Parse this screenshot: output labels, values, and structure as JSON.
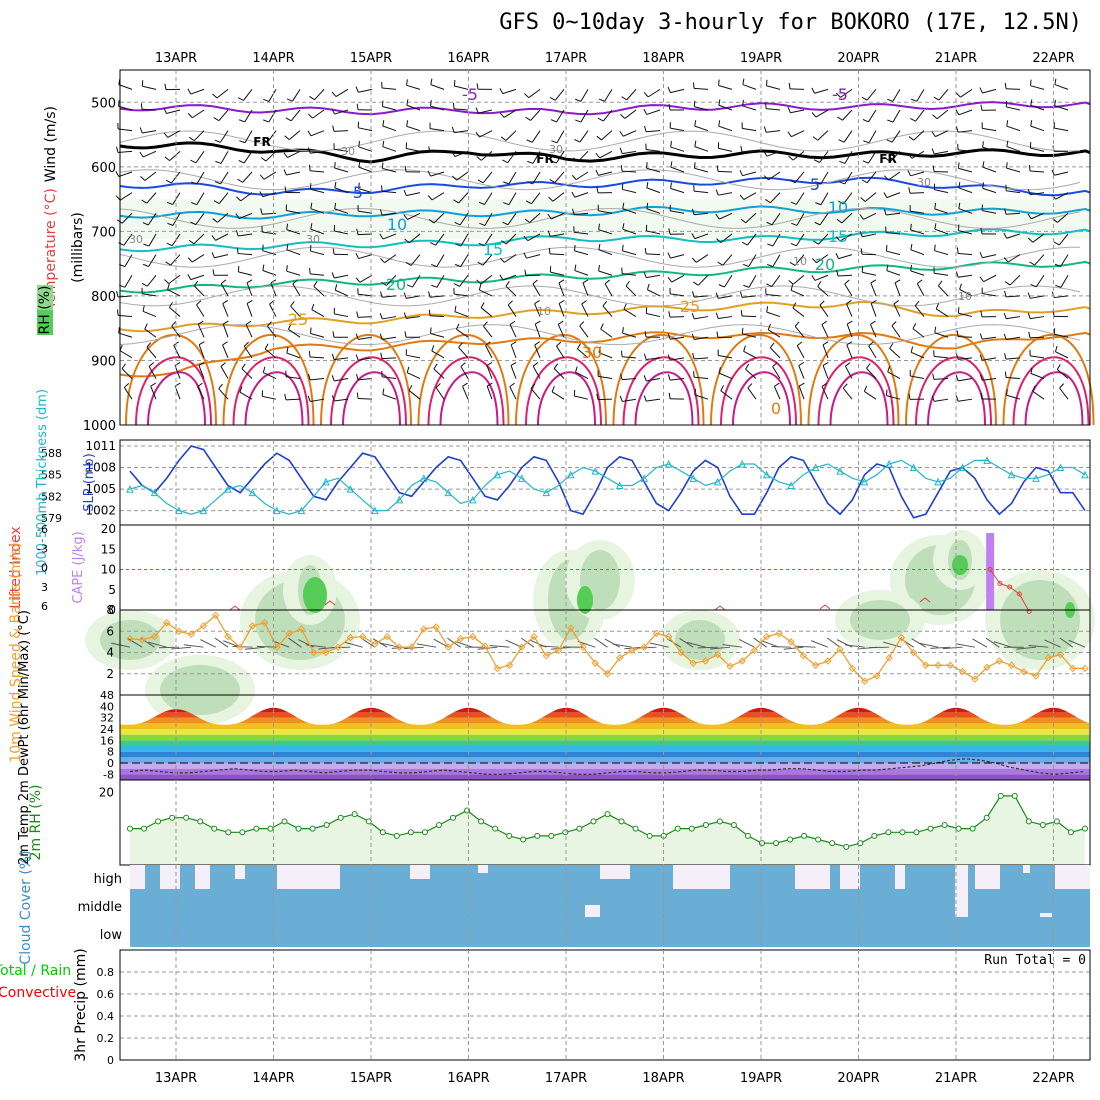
{
  "title": "GFS 0~10day 3-hourly for BOKORO (17E, 12.5N)",
  "dates": [
    "13APR",
    "14APR",
    "15APR",
    "16APR",
    "17APR",
    "18APR",
    "19APR",
    "20APR",
    "21APR",
    "22APR"
  ],
  "colors": {
    "dew_line": "#333333",
    "rain": "#00cc00",
    "convective": "#ff0000",
    "cloud": "#6aaed6",
    "rh_fill": "#e8f5e3",
    "rh_line": "#1a8a1a",
    "wind_line": "#f0a030",
    "cape_bar": "#c080f0",
    "li_line": "#e04040",
    "slp_line": "#1f3fd0",
    "thick_line": "#20b8c8"
  },
  "chart_data": [
    {
      "panel": "upper_air",
      "type": "heatmap",
      "ylabel_wind": "Wind (m/s)",
      "ylabel_temp": "Temperature (°C)",
      "ylabel_rh": "RH (%)",
      "ylabel_p": "(millibars)",
      "yticks": [
        500,
        600,
        700,
        800,
        900,
        1000
      ],
      "ylim": [
        450,
        1000
      ],
      "temperature_contour_labels": [
        "-5",
        "-5",
        "FR",
        "FR",
        "FR",
        "5",
        "5",
        "10",
        "10",
        "15",
        "15",
        "20",
        "20",
        "25",
        "25",
        "30",
        "0"
      ],
      "rh_contour_labels": [
        "30",
        "30",
        "30",
        "30",
        "10",
        "10",
        "10",
        "30"
      ],
      "isotherms_mb": [
        {
          "temp": -5,
          "p": [
            508,
            512,
            514,
            512,
            516,
            508,
            506,
            508,
            505,
            503
          ]
        },
        {
          "temp": 0,
          "p": [
            566,
            574,
            588,
            575,
            588,
            582,
            580,
            582,
            578,
            578
          ]
        },
        {
          "temp": 5,
          "p": [
            628,
            640,
            636,
            628,
            628,
            624,
            622,
            620,
            630,
            640
          ]
        },
        {
          "temp": 10,
          "p": [
            674,
            676,
            672,
            672,
            672,
            666,
            666,
            668,
            670,
            668
          ]
        },
        {
          "temp": 15,
          "p": [
            726,
            722,
            720,
            718,
            710,
            712,
            712,
            706,
            702,
            700
          ]
        },
        {
          "temp": 20,
          "p": [
            790,
            780,
            778,
            775,
            770,
            766,
            760,
            758,
            754,
            750
          ]
        },
        {
          "temp": 25,
          "p": [
            850,
            840,
            838,
            830,
            825,
            820,
            815,
            812,
            830,
            820
          ]
        },
        {
          "temp": 30,
          "p": [
            920,
            880,
            880,
            870,
            870,
            860,
            862,
            860,
            880,
            860
          ]
        }
      ]
    },
    {
      "panel": "slp_thickness",
      "type": "line",
      "ylabel_left": "1000-500mb Thickness (dm)",
      "ylabel_right": "SLP (mb)",
      "yticks_left": [
        579,
        582,
        585,
        588
      ],
      "yticks_right": [
        1002,
        1005,
        1008,
        1011
      ],
      "ylim_right": [
        1000,
        1011
      ],
      "series": [
        {
          "name": "SLP (mb)",
          "values": [
            1007.5,
            1005.5,
            1004.5,
            1006.5,
            1009,
            1011,
            1010.5,
            1008,
            1005.5,
            1004.5,
            1006.5,
            1008.5,
            1010,
            1009,
            1006.5,
            1004,
            1003.5,
            1006,
            1008,
            1010,
            1009.5,
            1007,
            1004.5,
            1004,
            1006,
            1008,
            1009.5,
            1009,
            1006.5,
            1004,
            1003.5,
            1005.5,
            1008,
            1009.5,
            1009,
            1006,
            1002,
            1001.5,
            1004.5,
            1008,
            1009.5,
            1009,
            1006,
            1003,
            1002,
            1004.5,
            1007.5,
            1009,
            1008,
            1004,
            1001.5,
            1001.5,
            1004.5,
            1008,
            1009.5,
            1009,
            1006,
            1003,
            1001.5,
            1003.5,
            1007,
            1008.5,
            1008,
            1004,
            1001,
            1001.5,
            1004.5,
            1007.5,
            1008,
            1006.5,
            1003.5,
            1001.5,
            1003,
            1006,
            1008,
            1007.5,
            1004.5,
            1004.5,
            1002
          ]
        },
        {
          "name": "Thickness (dm)",
          "values": [
            583,
            583.5,
            582.5,
            581,
            580,
            579.5,
            580,
            581.5,
            583,
            583.5,
            582.5,
            581,
            580,
            579.5,
            580,
            582,
            584,
            584.5,
            583,
            581.5,
            580,
            580,
            581.5,
            583.5,
            584.5,
            584,
            582.5,
            581,
            581.5,
            583.5,
            585,
            585.5,
            584.5,
            583,
            582.5,
            583.5,
            585,
            586,
            585.5,
            584.5,
            583.5,
            583.5,
            584.5,
            586,
            586.5,
            585.5,
            584.5,
            583.5,
            584,
            585.5,
            586.5,
            586.5,
            585,
            584,
            583.5,
            585,
            586,
            586.5,
            585.5,
            584.5,
            584,
            585,
            586.5,
            587,
            586,
            584.5,
            584,
            584.5,
            586,
            587,
            587,
            586,
            585,
            584.5,
            584.5,
            585,
            586,
            586,
            585
          ]
        }
      ]
    },
    {
      "panel": "cape_li",
      "type": "bar",
      "ylabel_left": "Lifted Index",
      "ylabel_right": "CAPE (J/kg)",
      "yticks_left": [
        "-6",
        "-3",
        "0",
        "3",
        "6"
      ],
      "yticks_right": [
        "0",
        "5",
        "10",
        "15",
        "20"
      ],
      "cape_bar": {
        "day_index": 8.35,
        "value": 19
      },
      "li_points": [
        {
          "x": 8.35,
          "y": 0
        },
        {
          "x": 8.45,
          "y": 2
        },
        {
          "x": 8.55,
          "y": 2.5
        },
        {
          "x": 8.65,
          "y": 3.5
        },
        {
          "x": 8.75,
          "y": 6
        }
      ]
    },
    {
      "panel": "wind10m",
      "type": "line",
      "ylabel": "10m Wind Speed & Barbs (m/s)",
      "yticks": [
        2,
        4,
        6,
        8
      ],
      "ylim": [
        0,
        8
      ],
      "values": [
        5.3,
        5.2,
        5.5,
        6.8,
        6,
        5.7,
        6.5,
        7.5,
        5.5,
        4.5,
        6.5,
        6.8,
        4.5,
        5.8,
        6.2,
        4,
        4,
        4.5,
        5.4,
        5.5,
        4.8,
        5.5,
        4.5,
        4.5,
        6.2,
        6.4,
        4.5,
        5.3,
        5.5,
        4.6,
        2.5,
        2.8,
        4.5,
        5.5,
        3.7,
        4.2,
        6.3,
        4.5,
        3,
        2,
        3.5,
        4.2,
        4.5,
        5.8,
        5.5,
        4,
        3,
        3.2,
        3.8,
        2.7,
        3.2,
        4.2,
        5.5,
        5.8,
        5,
        3.7,
        2.8,
        3.2,
        4.3,
        2.5,
        1.3,
        1.8,
        3.5,
        5.4,
        4,
        2.8,
        2.8,
        2.8,
        2.2,
        1.5,
        2.6,
        3.2,
        2.8,
        2.2,
        1.8,
        3.5,
        3.8,
        2.5,
        2.5
      ]
    },
    {
      "panel": "temp2m",
      "type": "area",
      "ylabel": "2m Temp 2m DewPt (6hr Min/Max) (°C)",
      "yticks": [
        "-8",
        "0",
        "8",
        "16",
        "24",
        "32",
        "40",
        "48"
      ],
      "ylim": [
        -12,
        48
      ],
      "temp_daily_max": [
        38,
        39,
        39,
        39,
        39,
        39,
        39,
        39,
        39,
        39
      ],
      "temp_daily_min": [
        27,
        27,
        27,
        27,
        27,
        27,
        27,
        27,
        27,
        27
      ],
      "dewpoint": [
        -6,
        -5,
        -6,
        -7,
        -7,
        -6,
        -5,
        -4,
        -5,
        -6,
        -6,
        -5,
        -6,
        -7,
        -6,
        -5,
        -5,
        -6,
        -7,
        -7,
        -6,
        -5,
        -6,
        -7,
        -8,
        -8,
        -7,
        -6,
        -6,
        -7,
        -8,
        -8,
        -7,
        -6,
        -6,
        -7,
        -7,
        -6,
        -5,
        -5,
        -6,
        -6,
        -5,
        -5,
        -4,
        -4,
        -5,
        -6,
        -6,
        -5,
        -5,
        -4,
        -3,
        -2,
        0,
        2,
        3,
        2,
        0,
        -3,
        -5,
        -7,
        -8,
        -7,
        -6
      ]
    },
    {
      "panel": "rh2m",
      "type": "area",
      "ylabel": "2m RH (%)",
      "yticks": [
        "20"
      ],
      "values": [
        10,
        10,
        12,
        13,
        13,
        12,
        10,
        9,
        9,
        10,
        10,
        12,
        10,
        10,
        11,
        13,
        14,
        12,
        9,
        8,
        9,
        9,
        11,
        13,
        15,
        12,
        10,
        8,
        7,
        8,
        8,
        9,
        10,
        12,
        14,
        12,
        10,
        8,
        8,
        10,
        10,
        11,
        12,
        11,
        8,
        6,
        6,
        7,
        8,
        7,
        6,
        5,
        6,
        8,
        9,
        9,
        9,
        10,
        11,
        10,
        10,
        13,
        19,
        19,
        12,
        11,
        12,
        9,
        10
      ]
    },
    {
      "panel": "cloud",
      "type": "heatmap",
      "ylabel": "Cloud Cover (%)",
      "levels": [
        "high",
        "middle",
        "low"
      ]
    },
    {
      "panel": "precip",
      "type": "bar",
      "ylabel_left": "Total / Rain",
      "ylabel_left2": "Convective",
      "ylabel": "3hr Precip (mm)",
      "yticks": [
        "0",
        "0.2",
        "0.4",
        "0.6",
        "0.8"
      ],
      "ylim": [
        0,
        1
      ],
      "run_total_text": "Run Total = 0",
      "values": []
    }
  ]
}
